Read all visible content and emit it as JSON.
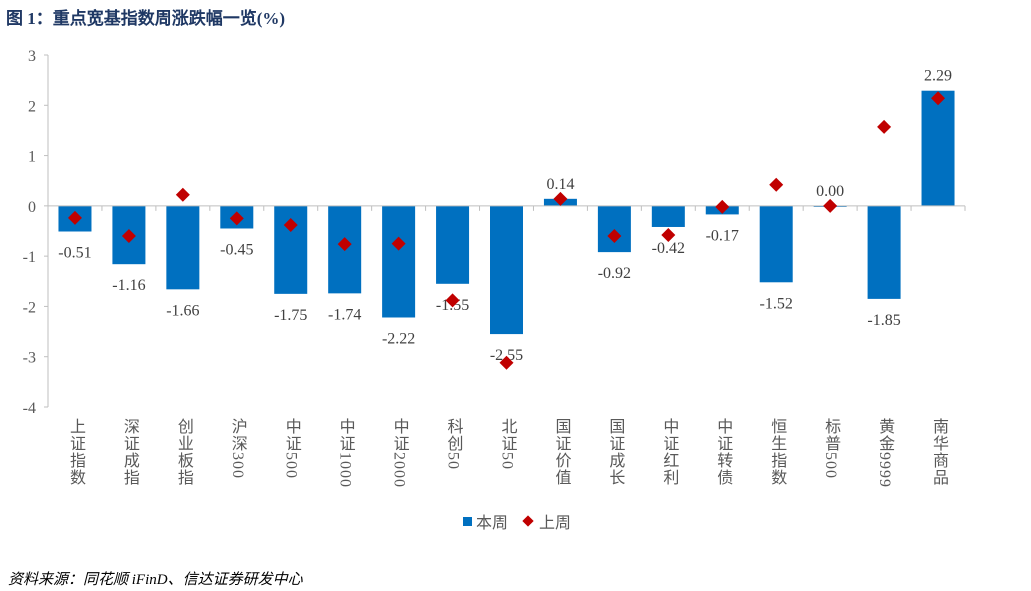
{
  "title": "图 1：重点宽基指数周涨跌幅一览(%)",
  "source": "资料来源：同花顺 iFinD、信达证券研发中心",
  "chart_data": {
    "type": "bar",
    "title": "图 1：重点宽基指数周涨跌幅一览(%)",
    "categories": [
      "上证指数",
      "深证成指",
      "创业板指",
      "沪深300",
      "中证500",
      "中证1000",
      "中证2000",
      "科创50",
      "北证50",
      "国证价值",
      "国证成长",
      "中证红利",
      "中证转债",
      "恒生指数",
      "标普500",
      "黄金9999",
      "南华商品"
    ],
    "series": [
      {
        "name": "本周",
        "type": "bar",
        "color": "#0070c0",
        "values": [
          -0.51,
          -1.16,
          -1.66,
          -0.45,
          -1.75,
          -1.74,
          -2.22,
          -1.55,
          -2.55,
          0.14,
          -0.92,
          -0.42,
          -0.17,
          -1.52,
          0.0,
          -1.85,
          2.29
        ],
        "labels": [
          "-0.51",
          "-1.16",
          "-1.66",
          "-0.45",
          "-1.75",
          "-1.74",
          "-2.22",
          "-1.55",
          "-2.55",
          "0.14",
          "-0.92",
          "-0.42",
          "-0.17",
          "-1.52",
          "0.00",
          "-1.85",
          "2.29"
        ]
      },
      {
        "name": "上周",
        "type": "scatter",
        "marker": "diamond",
        "color": "#c00000",
        "values": [
          -0.24,
          -0.6,
          0.22,
          -0.25,
          -0.38,
          -0.76,
          -0.75,
          -1.88,
          -3.12,
          0.14,
          -0.6,
          -0.58,
          -0.02,
          0.42,
          0.0,
          1.57,
          2.14
        ]
      }
    ],
    "ylim": [
      -4,
      3
    ],
    "yticks": [
      "3",
      "2",
      "1",
      "0",
      "-1",
      "-2",
      "-3",
      "-4"
    ],
    "grid": false,
    "legend": "bottom"
  }
}
